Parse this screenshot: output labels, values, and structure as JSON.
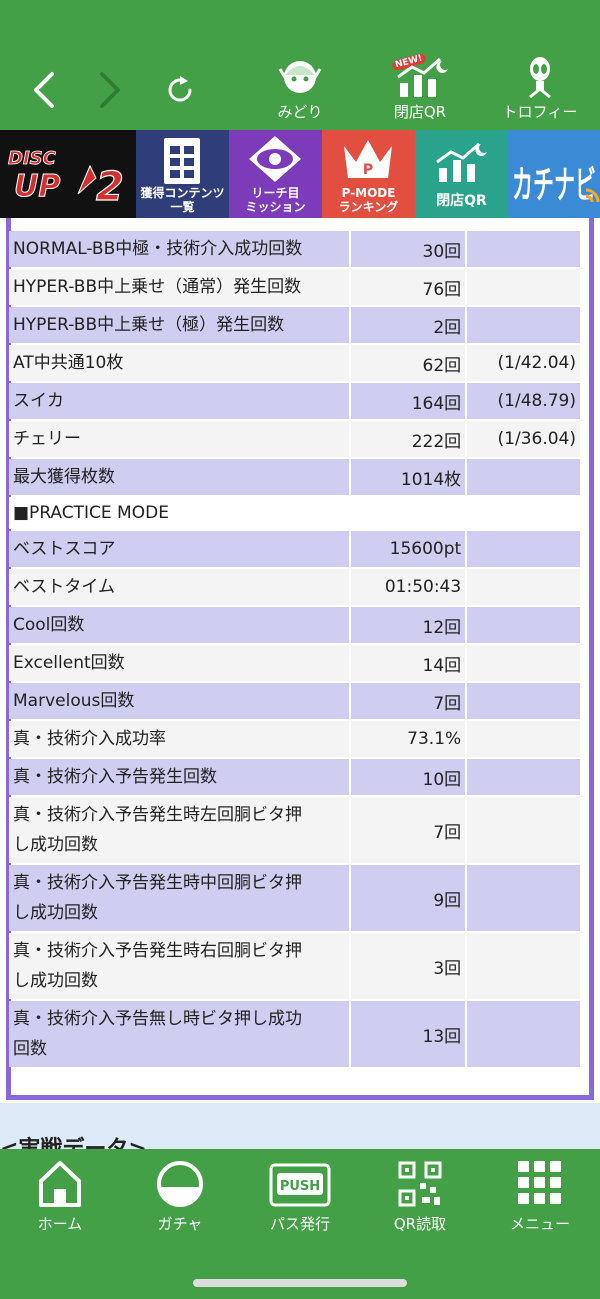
{
  "topnav": {
    "items": [
      {
        "label": "みどり",
        "icon": "character-icon"
      },
      {
        "label": "閉店QR",
        "icon": "chart-moon-icon",
        "badge": "NEW!"
      },
      {
        "label": "トロフィー",
        "icon": "trophy-alien-icon"
      }
    ]
  },
  "banners": {
    "disc_line1": "DISC",
    "disc_line2": "UP",
    "disc_num": "2",
    "kakutoku": [
      "獲得コンテンツ",
      "一覧"
    ],
    "reach": [
      "リーチ目",
      "ミッション"
    ],
    "pmode_badge": "P",
    "pmode": [
      "P-MODE",
      "ランキング"
    ],
    "qr": "閉店QR",
    "kachi": "カチナビ"
  },
  "stats": {
    "rows": [
      {
        "label": "NORMAL-BB中極・技術介入成功回数",
        "value": "30回",
        "rate": ""
      },
      {
        "label": "HYPER-BB中上乗せ（通常）発生回数",
        "value": "76回",
        "rate": ""
      },
      {
        "label": "HYPER-BB中上乗せ（極）発生回数",
        "value": "2回",
        "rate": ""
      },
      {
        "label": "AT中共通10枚",
        "value": "62回",
        "rate": "(1/42.04)"
      },
      {
        "label": "スイカ",
        "value": "164回",
        "rate": "(1/48.79)"
      },
      {
        "label": "チェリー",
        "value": "222回",
        "rate": "(1/36.04)"
      },
      {
        "label": "最大獲得枚数",
        "value": "1014枚",
        "rate": ""
      }
    ],
    "section": "■PRACTICE MODE",
    "practice": [
      {
        "label": "ベストスコア",
        "value": "15600pt"
      },
      {
        "label": "ベストタイム",
        "value": "01:50:43"
      },
      {
        "label": "Cool回数",
        "value": "12回"
      },
      {
        "label": "Excellent回数",
        "value": "14回"
      },
      {
        "label": "Marvelous回数",
        "value": "7回"
      },
      {
        "label": "真・技術介入成功率",
        "value": "73.1%"
      },
      {
        "label": "真・技術介入予告発生回数",
        "value": "10回"
      },
      {
        "label": "真・技術介入予告発生時左回胴ビタ押",
        "label2": "し成功回数",
        "value": "7回"
      },
      {
        "label": "真・技術介入予告発生時中回胴ビタ押",
        "label2": "し成功回数",
        "value": "9回"
      },
      {
        "label": "真・技術介入予告発生時右回胴ビタ押",
        "label2": "し成功回数",
        "value": "3回"
      },
      {
        "label": "真・技術介入予告無し時ビタ押し成功",
        "label2": "回数",
        "value": "13回"
      }
    ]
  },
  "lower": {
    "title": "<実戦データ>"
  },
  "bottomnav": {
    "tabs": [
      {
        "label": "ホーム",
        "icon": "home-icon"
      },
      {
        "label": "ガチャ",
        "icon": "gacha-ball-icon"
      },
      {
        "label": "パス発行",
        "icon": "push-pass-icon",
        "icon_text": "PUSH"
      },
      {
        "label": "QR読取",
        "icon": "qr-code-icon"
      },
      {
        "label": "メニュー",
        "icon": "grid-menu-icon"
      }
    ]
  },
  "colors": {
    "green": "#43a047",
    "purple_border": "#8b67dd",
    "row_lavender": "#cfcdf0",
    "row_gray": "#f4f4f4"
  }
}
